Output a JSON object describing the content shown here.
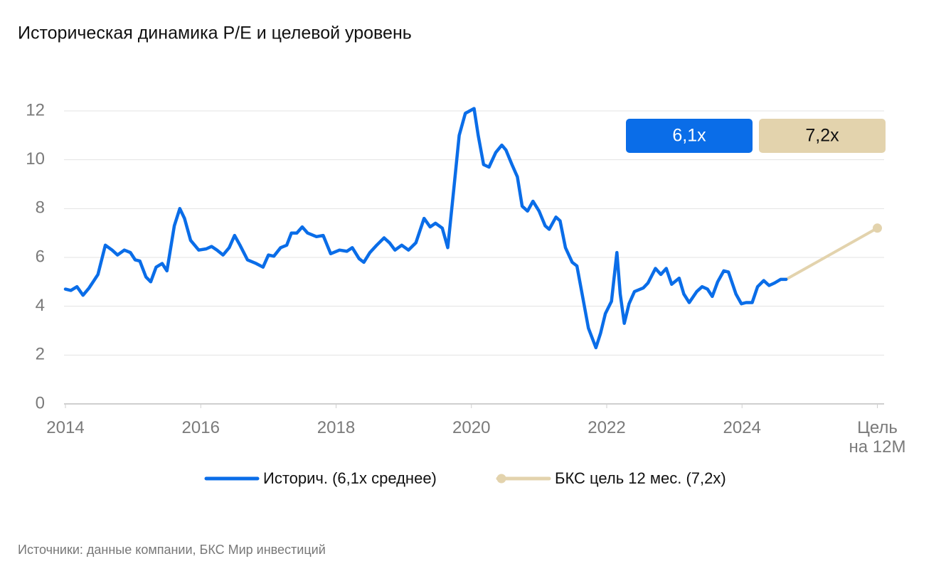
{
  "chart_data": {
    "type": "line",
    "title": "Историческая динамика P/E и целевой уровень",
    "source": "Источники: данные компании, БКС Мир инвестиций",
    "xlim": [
      2014,
      2026.1
    ],
    "xticks": [
      2014,
      2016,
      2018,
      2020,
      2022,
      2024,
      {
        "value": 2026,
        "label": "Цель\nна 12М"
      }
    ],
    "ylim": [
      0,
      12
    ],
    "yticks": [
      0,
      2,
      4,
      6,
      8,
      10,
      12
    ],
    "grid": true,
    "badges": [
      {
        "text": "6,1x",
        "color": "#0a6de8"
      },
      {
        "text": "7,2x",
        "color": "#e3d3ad"
      }
    ],
    "series": [
      {
        "name": "Историч. (6,1x среднее)",
        "color": "#0a6de8",
        "x": [
          2014.0,
          2014.08,
          2014.17,
          2014.26,
          2014.35,
          2014.48,
          2014.59,
          2014.69,
          2014.77,
          2014.87,
          2014.96,
          2015.03,
          2015.1,
          2015.19,
          2015.26,
          2015.34,
          2015.43,
          2015.5,
          2015.61,
          2015.69,
          2015.76,
          2015.85,
          2015.97,
          2016.08,
          2016.16,
          2016.24,
          2016.33,
          2016.42,
          2016.5,
          2016.58,
          2016.69,
          2016.82,
          2016.92,
          2017.0,
          2017.08,
          2017.18,
          2017.27,
          2017.34,
          2017.42,
          2017.5,
          2017.58,
          2017.71,
          2017.81,
          2017.92,
          2018.05,
          2018.16,
          2018.24,
          2018.34,
          2018.41,
          2018.5,
          2018.6,
          2018.71,
          2018.79,
          2018.87,
          2018.97,
          2019.07,
          2019.18,
          2019.3,
          2019.39,
          2019.47,
          2019.57,
          2019.65,
          2019.74,
          2019.82,
          2019.91,
          2020.04,
          2020.1,
          2020.18,
          2020.26,
          2020.36,
          2020.45,
          2020.51,
          2020.6,
          2020.68,
          2020.75,
          2020.83,
          2020.91,
          2021.0,
          2021.09,
          2021.15,
          2021.25,
          2021.31,
          2021.39,
          2021.49,
          2021.56,
          2021.65,
          2021.73,
          2021.84,
          2021.91,
          2021.98,
          2022.07,
          2022.15,
          2022.2,
          2022.26,
          2022.33,
          2022.41,
          2022.54,
          2022.61,
          2022.72,
          2022.8,
          2022.88,
          2022.96,
          2023.07,
          2023.14,
          2023.22,
          2023.33,
          2023.41,
          2023.49,
          2023.56,
          2023.64,
          2023.73,
          2023.8,
          2023.91,
          2023.99,
          2024.06,
          2024.15,
          2024.23,
          2024.32,
          2024.4,
          2024.48,
          2024.57,
          2024.65
        ],
        "values": [
          4.7,
          4.65,
          4.8,
          4.45,
          4.75,
          5.3,
          6.5,
          6.3,
          6.1,
          6.3,
          6.2,
          5.9,
          5.85,
          5.2,
          5.0,
          5.6,
          5.75,
          5.45,
          7.3,
          8.0,
          7.6,
          6.7,
          6.3,
          6.35,
          6.45,
          6.3,
          6.1,
          6.4,
          6.9,
          6.5,
          5.9,
          5.75,
          5.6,
          6.1,
          6.05,
          6.4,
          6.5,
          7.0,
          7.0,
          7.25,
          7.0,
          6.85,
          6.9,
          6.15,
          6.3,
          6.25,
          6.4,
          5.95,
          5.8,
          6.2,
          6.5,
          6.8,
          6.6,
          6.3,
          6.5,
          6.3,
          6.6,
          7.6,
          7.25,
          7.4,
          7.2,
          6.4,
          8.8,
          11.0,
          11.9,
          12.1,
          11.0,
          9.8,
          9.7,
          10.3,
          10.6,
          10.4,
          9.8,
          9.3,
          8.1,
          7.9,
          8.3,
          7.9,
          7.3,
          7.15,
          7.65,
          7.5,
          6.4,
          5.8,
          5.65,
          4.3,
          3.1,
          2.3,
          2.9,
          3.7,
          4.2,
          6.2,
          4.5,
          3.3,
          4.1,
          4.6,
          4.75,
          4.95,
          5.55,
          5.3,
          5.55,
          4.9,
          5.15,
          4.5,
          4.15,
          4.6,
          4.8,
          4.7,
          4.4,
          5.0,
          5.45,
          5.4,
          4.5,
          4.1,
          4.15,
          4.15,
          4.8,
          5.05,
          4.85,
          4.95,
          5.1,
          5.1
        ]
      },
      {
        "name": "БКС цель 12 мес. (7,2x)",
        "color": "#e3d3ad",
        "x": [
          2024.65,
          2026
        ],
        "values": [
          5.1,
          7.2
        ]
      }
    ]
  }
}
